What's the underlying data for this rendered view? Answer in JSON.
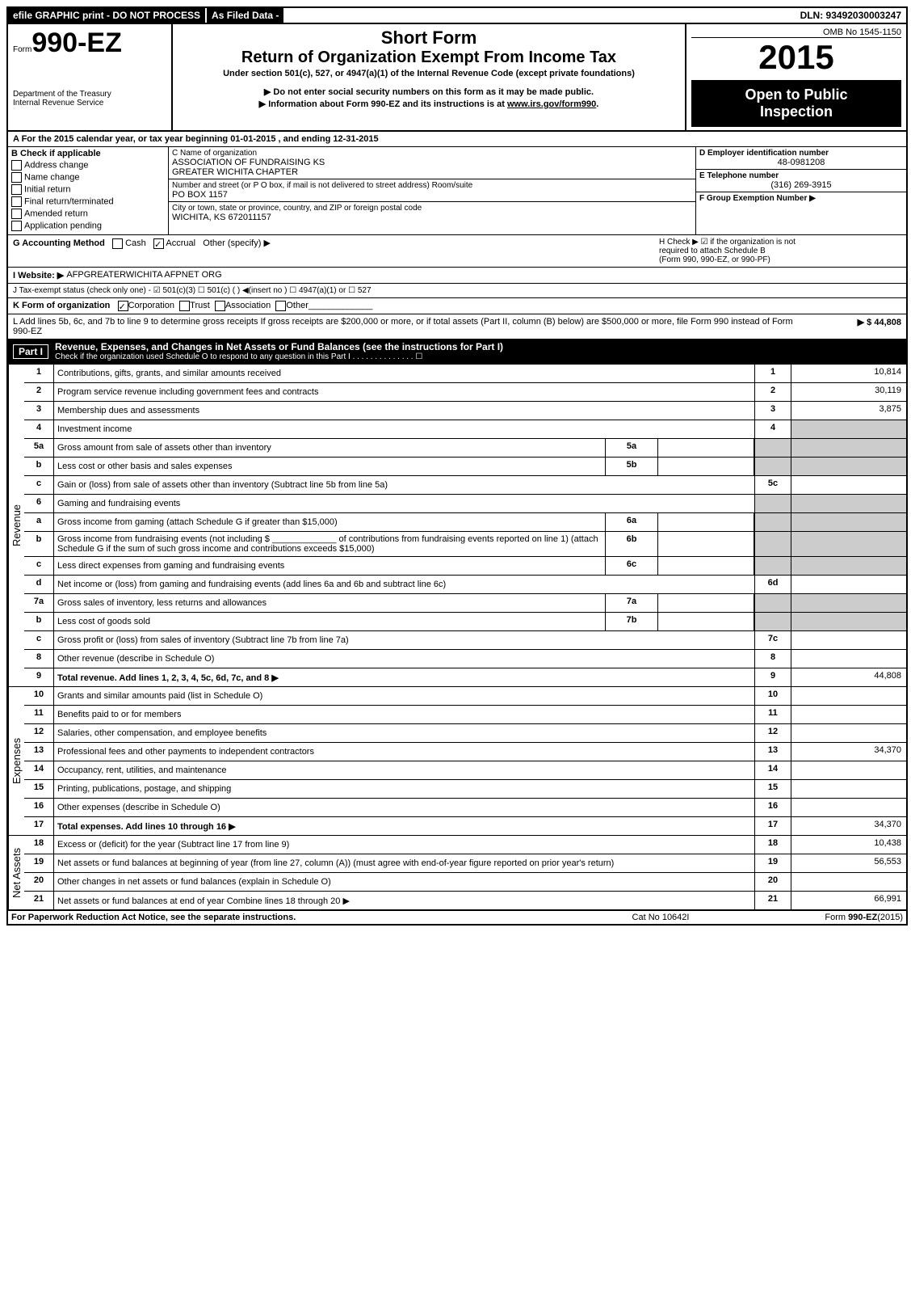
{
  "topbar": {
    "tab1": "efile GRAPHIC print - DO NOT PROCESS",
    "tab2": "As Filed Data -",
    "dln": "DLN: 93492030003247"
  },
  "header": {
    "form_prefix": "Form",
    "form_num": "990-EZ",
    "dept1": "Department of the Treasury",
    "dept2": "Internal Revenue Service",
    "short_form": "Short Form",
    "title": "Return of Organization Exempt From Income Tax",
    "subtitle": "Under section 501(c), 527, or 4947(a)(1) of the Internal Revenue Code (except private foundations)",
    "note1": "▶ Do not enter social security numbers on this form as it may be made public.",
    "note2_prefix": "▶ Information about Form 990-EZ and its instructions is at ",
    "note2_link": "www.irs.gov/form990",
    "note2_suffix": ".",
    "omb": "OMB No 1545-1150",
    "year": "2015",
    "open_public1": "Open to Public",
    "open_public2": "Inspection"
  },
  "section_a": "A  For the 2015 calendar year, or tax year beginning 01-01-2015             , and ending 12-31-2015",
  "section_b": {
    "title": "B  Check if applicable",
    "items": [
      {
        "label": "Address change",
        "checked": false
      },
      {
        "label": "Name change",
        "checked": false
      },
      {
        "label": "Initial return",
        "checked": false
      },
      {
        "label": "Final return/terminated",
        "checked": false
      },
      {
        "label": "Amended return",
        "checked": false
      },
      {
        "label": "Application pending",
        "checked": false
      }
    ]
  },
  "section_c": {
    "name_label": "C Name of organization",
    "name1": "ASSOCIATION OF FUNDRAISING KS",
    "name2": "GREATER WICHITA CHAPTER",
    "addr_label": "Number and street (or P O box, if mail is not delivered to street address) Room/suite",
    "addr": "PO BOX 1157",
    "city_label": "City or town, state or province, country, and ZIP or foreign postal code",
    "city": "WICHITA, KS  672011157"
  },
  "section_d": {
    "label": "D Employer identification number",
    "value": "48-0981208"
  },
  "section_e": {
    "label": "E Telephone number",
    "value": "(316) 269-3915"
  },
  "section_f": {
    "label": "F Group Exemption Number  ▶",
    "value": ""
  },
  "section_g": {
    "label": "G Accounting Method",
    "cash": "Cash",
    "accrual": "Accrual",
    "other": "Other (specify) ▶",
    "accrual_checked": true
  },
  "section_h": {
    "line1": "H  Check ▶ ☑ if the organization is not",
    "line2": "required to attach Schedule B",
    "line3": "(Form 990, 990-EZ, or 990-PF)"
  },
  "section_i": {
    "label": "I Website: ▶",
    "value": "AFPGREATERWICHITA AFPNET ORG"
  },
  "section_j": "J Tax-exempt status (check only one) - ☑ 501(c)(3)  ☐ 501(c) (  ) ◀(insert no )  ☐ 4947(a)(1) or  ☐ 527",
  "section_k": {
    "label": "K Form of organization",
    "corp": "Corporation",
    "trust": "Trust",
    "assoc": "Association",
    "other": "Other",
    "corp_checked": true
  },
  "section_l": {
    "text": "L Add lines 5b, 6c, and 7b to line 9 to determine gross receipts  If gross receipts are $200,000 or more, or if total assets (Part II, column (B) below) are $500,000 or more, file Form 990 instead of Form 990-EZ",
    "amount": "▶ $ 44,808"
  },
  "part1": {
    "label": "Part I",
    "title": "Revenue, Expenses, and Changes in Net Assets or Fund Balances (see the instructions for Part I)",
    "subtitle": "Check if the organization used Schedule O to respond to any question in this Part I  .  .  .  .  .  .  .  .  .  .  .  .  .  . ☐"
  },
  "revenue_label": "Revenue",
  "expenses_label": "Expenses",
  "netassets_label": "Net Assets",
  "rows": {
    "r1": {
      "num": "1",
      "desc": "Contributions, gifts, grants, and similar amounts received",
      "box": "1",
      "amt": "10,814"
    },
    "r2": {
      "num": "2",
      "desc": "Program service revenue including government fees and contracts",
      "box": "2",
      "amt": "30,119"
    },
    "r3": {
      "num": "3",
      "desc": "Membership dues and assessments",
      "box": "3",
      "amt": "3,875"
    },
    "r4": {
      "num": "4",
      "desc": "Investment income",
      "box": "4",
      "amt": ""
    },
    "r5a": {
      "num": "5a",
      "desc": "Gross amount from sale of assets other than inventory",
      "inner": "5a"
    },
    "r5b": {
      "num": "b",
      "desc": "Less  cost or other basis and sales expenses",
      "inner": "5b"
    },
    "r5c": {
      "num": "c",
      "desc": "Gain or (loss) from sale of assets other than inventory (Subtract line 5b from line 5a)",
      "box": "5c",
      "amt": ""
    },
    "r6": {
      "num": "6",
      "desc": "Gaming and fundraising events"
    },
    "r6a": {
      "num": "a",
      "desc": "Gross income from gaming (attach Schedule G if greater than $15,000)",
      "inner": "6a"
    },
    "r6b": {
      "num": "b",
      "desc": "Gross income from fundraising events (not including $ _____________ of contributions from fundraising events reported on line 1) (attach Schedule G if the sum of such gross income and contributions exceeds $15,000)",
      "inner": "6b"
    },
    "r6c": {
      "num": "c",
      "desc": "Less  direct expenses from gaming and fundraising events",
      "inner": "6c"
    },
    "r6d": {
      "num": "d",
      "desc": "Net income or (loss) from gaming and fundraising events (add lines 6a and 6b and subtract line 6c)",
      "box": "6d",
      "amt": ""
    },
    "r7a": {
      "num": "7a",
      "desc": "Gross sales of inventory, less returns and allowances",
      "inner": "7a"
    },
    "r7b": {
      "num": "b",
      "desc": "Less  cost of goods sold",
      "inner": "7b"
    },
    "r7c": {
      "num": "c",
      "desc": "Gross profit or (loss) from sales of inventory (Subtract line 7b from line 7a)",
      "box": "7c",
      "amt": ""
    },
    "r8": {
      "num": "8",
      "desc": "Other revenue (describe in Schedule O)",
      "box": "8",
      "amt": ""
    },
    "r9": {
      "num": "9",
      "desc": "Total revenue. Add lines 1, 2, 3, 4, 5c, 6d, 7c, and 8     ▶",
      "box": "9",
      "amt": "44,808",
      "bold": true
    },
    "r10": {
      "num": "10",
      "desc": "Grants and similar amounts paid (list in Schedule O)",
      "box": "10",
      "amt": ""
    },
    "r11": {
      "num": "11",
      "desc": "Benefits paid to or for members",
      "box": "11",
      "amt": ""
    },
    "r12": {
      "num": "12",
      "desc": "Salaries, other compensation, and employee benefits",
      "box": "12",
      "amt": ""
    },
    "r13": {
      "num": "13",
      "desc": "Professional fees and other payments to independent contractors",
      "box": "13",
      "amt": "34,370"
    },
    "r14": {
      "num": "14",
      "desc": "Occupancy, rent, utilities, and maintenance",
      "box": "14",
      "amt": ""
    },
    "r15": {
      "num": "15",
      "desc": "Printing, publications, postage, and shipping",
      "box": "15",
      "amt": ""
    },
    "r16": {
      "num": "16",
      "desc": "Other expenses (describe in Schedule O)",
      "box": "16",
      "amt": ""
    },
    "r17": {
      "num": "17",
      "desc": "Total expenses. Add lines 10 through 16     ▶",
      "box": "17",
      "amt": "34,370",
      "bold": true
    },
    "r18": {
      "num": "18",
      "desc": "Excess or (deficit) for the year (Subtract line 17 from line 9)",
      "box": "18",
      "amt": "10,438"
    },
    "r19": {
      "num": "19",
      "desc": "Net assets or fund balances at beginning of year (from line 27, column (A)) (must agree with end-of-year figure reported on prior year's return)",
      "box": "19",
      "amt": "56,553"
    },
    "r20": {
      "num": "20",
      "desc": "Other changes in net assets or fund balances (explain in Schedule O)",
      "box": "20",
      "amt": ""
    },
    "r21": {
      "num": "21",
      "desc": "Net assets or fund balances at end of year  Combine lines 18 through 20     ▶",
      "box": "21",
      "amt": "66,991"
    }
  },
  "footer": {
    "left": "For Paperwork Reduction Act Notice, see the separate instructions.",
    "mid": "Cat No 10642I",
    "right": "Form 990-EZ (2015)"
  }
}
